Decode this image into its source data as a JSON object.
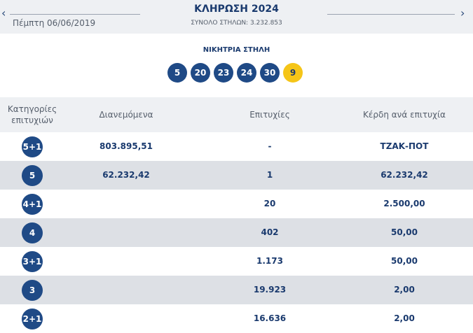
{
  "header": {
    "prev_icon": "‹",
    "next_icon": "›",
    "date": "Πέμπτη 06/06/2019",
    "title": "ΚΛΗΡΩΣΗ 2024",
    "subtitle": "ΣΥΝΟΛΟ ΣΤΗΛΩΝ: 3.232.853"
  },
  "winning": {
    "label": "ΝΙΚΗΤΡΙΑ ΣΤΗΛΗ",
    "numbers": [
      "5",
      "20",
      "23",
      "24",
      "30"
    ],
    "bonus": "9"
  },
  "table": {
    "headers": {
      "category_line1": "Κατηγορίες",
      "category_line2": "επιτυχιών",
      "distributed": "Διανεμόμενα",
      "winners": "Επιτυχίες",
      "prize": "Κέρδη ανά επιτυχία"
    },
    "rows": [
      {
        "cat": "5+1",
        "distributed": "803.895,51",
        "winners": "-",
        "prize": "ΤΖΑΚ-ΠΟΤ"
      },
      {
        "cat": "5",
        "distributed": "62.232,42",
        "winners": "1",
        "prize": "62.232,42"
      },
      {
        "cat": "4+1",
        "distributed": "",
        "winners": "20",
        "prize": "2.500,00"
      },
      {
        "cat": "4",
        "distributed": "",
        "winners": "402",
        "prize": "50,00"
      },
      {
        "cat": "3+1",
        "distributed": "",
        "winners": "1.173",
        "prize": "50,00"
      },
      {
        "cat": "3",
        "distributed": "",
        "winners": "19.923",
        "prize": "2,00"
      },
      {
        "cat": "2+1",
        "distributed": "",
        "winners": "16.636",
        "prize": "2,00"
      }
    ]
  },
  "colors": {
    "ball": "#1f4a86",
    "bonus": "#f5c518",
    "text": "#1a3a6e"
  }
}
